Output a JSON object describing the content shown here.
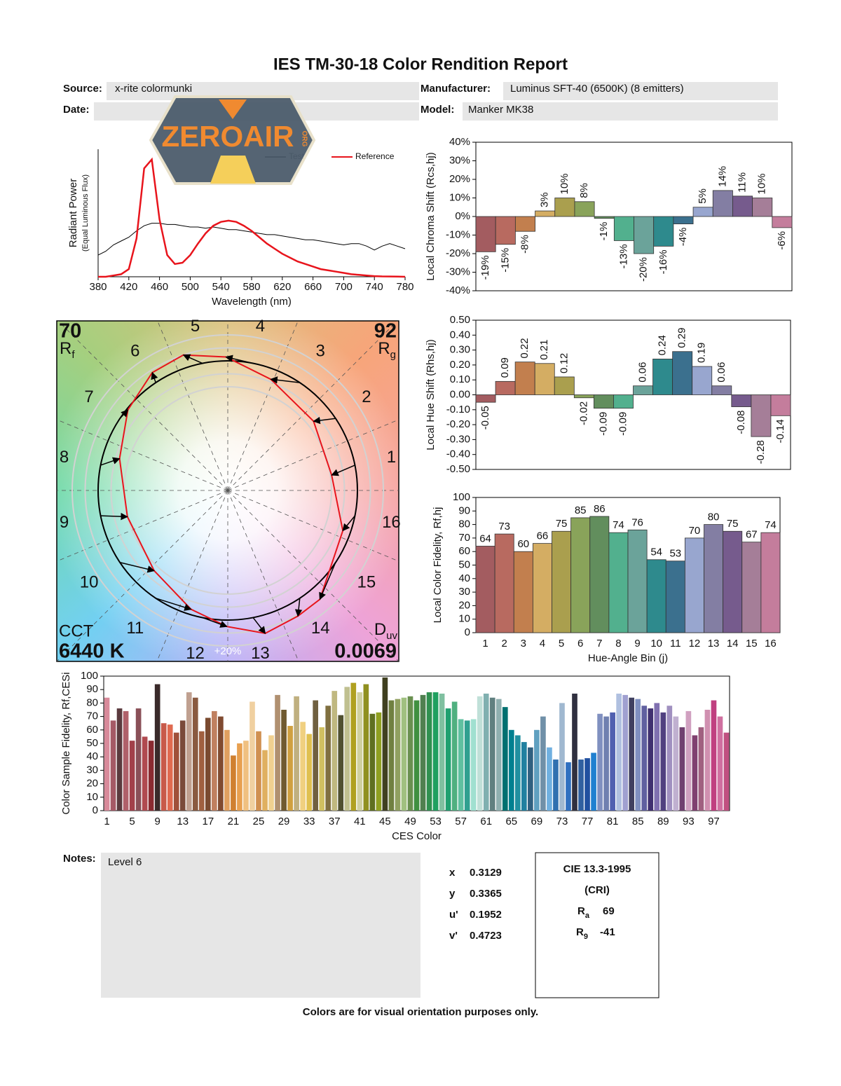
{
  "header": {
    "title": "IES TM-30-18 Color Rendition Report",
    "source_label": "Source:",
    "source": "x-rite colormunki",
    "manufacturer_label": "Manufacturer:",
    "manufacturer": "Luminus SFT-40 (6500K) (8 emitters)",
    "date_label": "Date:",
    "model_label": "Model:",
    "model": "Manker MK38"
  },
  "logo": {
    "text": "ZEROAIR",
    "suffix": "ORG"
  },
  "chart_data": [
    {
      "type": "line",
      "x": [
        380,
        390,
        400,
        410,
        420,
        430,
        440,
        450,
        460,
        470,
        480,
        490,
        500,
        510,
        520,
        530,
        540,
        550,
        560,
        570,
        580,
        590,
        600,
        610,
        620,
        630,
        640,
        650,
        660,
        670,
        680,
        690,
        700,
        710,
        720,
        730,
        740,
        750,
        760,
        770,
        780
      ],
      "series": [
        {
          "name": "Test",
          "color": "#000000",
          "values": [
            0.17,
            0.2,
            0.25,
            0.28,
            0.31,
            0.36,
            0.4,
            0.42,
            0.42,
            0.41,
            0.41,
            0.4,
            0.39,
            0.39,
            0.38,
            0.39,
            0.38,
            0.37,
            0.37,
            0.36,
            0.35,
            0.34,
            0.33,
            0.33,
            0.32,
            0.31,
            0.3,
            0.29,
            0.29,
            0.28,
            0.27,
            0.26,
            0.25,
            0.26,
            0.26,
            0.24,
            0.21,
            0.24,
            0.26,
            0.24,
            0.22
          ]
        },
        {
          "name": "Reference",
          "color": "#e8141c",
          "values": [
            0,
            0,
            0.01,
            0.02,
            0.06,
            0.3,
            0.85,
            0.92,
            0.45,
            0.17,
            0.1,
            0.11,
            0.17,
            0.26,
            0.34,
            0.4,
            0.43,
            0.44,
            0.43,
            0.4,
            0.36,
            0.31,
            0.26,
            0.22,
            0.18,
            0.15,
            0.12,
            0.1,
            0.08,
            0.06,
            0.05,
            0.04,
            0.03,
            0.02,
            0.015,
            0.01,
            0.005,
            0.003,
            0.002,
            0.001,
            0
          ]
        }
      ],
      "xlim": [
        380,
        780
      ],
      "ylim": [
        0,
        1
      ],
      "xticks": [
        380,
        420,
        460,
        500,
        540,
        580,
        620,
        660,
        700,
        740,
        780
      ],
      "xlabel": "Wavelength (nm)",
      "ylabel": "Radiant Power",
      "ylabel_note": "(Equal Luminous Flux)",
      "legend": "upper right"
    },
    {
      "type": "bar",
      "ylabel": "Local Chroma Shift (Rcs,hj)",
      "values": [
        -19,
        -15,
        -8,
        3,
        10,
        8,
        -1,
        -13,
        -20,
        -16,
        -4,
        5,
        14,
        11,
        10,
        -6
      ],
      "value_labels": [
        "-19%",
        "-15%",
        "-8%",
        "3%",
        "10%",
        "8%",
        "-1%",
        "-13%",
        "-20%",
        "-16%",
        "-4%",
        "5%",
        "14%",
        "11%",
        "10%",
        "-6%"
      ],
      "ylim": [
        -40,
        40
      ],
      "yticks": [
        {
          "value": 40,
          "label": "40%"
        },
        {
          "value": 30,
          "label": "30%"
        },
        {
          "value": 20,
          "label": "20%"
        },
        {
          "value": 10,
          "label": "10%"
        },
        {
          "value": 0,
          "label": "0%"
        },
        {
          "value": -10,
          "label": "-10%"
        },
        {
          "value": -20,
          "label": "-20%"
        },
        {
          "value": -30,
          "label": "-30%"
        },
        {
          "value": -40,
          "label": "-40%"
        }
      ],
      "colors": [
        "#a35c60",
        "#b86a60",
        "#c27f4e",
        "#d4ad63",
        "#aa9f4e",
        "#89a35a",
        "#628e5d",
        "#52b08e",
        "#6ba39a",
        "#2e8a8d",
        "#3b708e",
        "#98a6cf",
        "#837ea3",
        "#765b8d",
        "#a57e98",
        "#c47d9c"
      ]
    },
    {
      "type": "bar",
      "ylabel": "Local Hue Shift (Rhs,hj)",
      "values": [
        -0.05,
        0.09,
        0.22,
        0.21,
        0.12,
        -0.02,
        -0.09,
        -0.09,
        0.06,
        0.24,
        0.29,
        0.19,
        0.06,
        -0.08,
        -0.28,
        -0.14
      ],
      "ylim": [
        -0.5,
        0.5
      ],
      "yticks": [
        {
          "value": 0.5,
          "label": "0.50"
        },
        {
          "value": 0.4,
          "label": "0.40"
        },
        {
          "value": 0.3,
          "label": "0.30"
        },
        {
          "value": 0.2,
          "label": "0.20"
        },
        {
          "value": 0.1,
          "label": "0.10"
        },
        {
          "value": 0,
          "label": "0.00"
        },
        {
          "value": -0.1,
          "label": "-0.10"
        },
        {
          "value": -0.2,
          "label": "-0.20"
        },
        {
          "value": -0.3,
          "label": "-0.30"
        },
        {
          "value": -0.4,
          "label": "-0.40"
        },
        {
          "value": -0.5,
          "label": "-0.50"
        }
      ],
      "colors": [
        "#a35c60",
        "#b86a60",
        "#c27f4e",
        "#d4ad63",
        "#aa9f4e",
        "#89a35a",
        "#628e5d",
        "#52b08e",
        "#6ba39a",
        "#2e8a8d",
        "#3b708e",
        "#98a6cf",
        "#837ea3",
        "#765b8d",
        "#a57e98",
        "#c47d9c"
      ]
    },
    {
      "type": "bar",
      "ylabel": "Local Color Fidelity, Rf,hj",
      "xlabel": "Hue-Angle Bin (j)",
      "categories": [
        "1",
        "2",
        "3",
        "4",
        "5",
        "6",
        "7",
        "8",
        "9",
        "10",
        "11",
        "12",
        "13",
        "14",
        "15",
        "16"
      ],
      "values": [
        64,
        73,
        60,
        66,
        75,
        85,
        86,
        74,
        76,
        54,
        53,
        70,
        80,
        75,
        67,
        74
      ],
      "ylim": [
        0,
        100
      ],
      "yticks": [
        0,
        10,
        20,
        30,
        40,
        50,
        60,
        70,
        80,
        90,
        100
      ],
      "colors": [
        "#a35c60",
        "#b86a60",
        "#c27f4e",
        "#d4ad63",
        "#aa9f4e",
        "#89a35a",
        "#628e5d",
        "#52b08e",
        "#6ba39a",
        "#2e8a8d",
        "#3b708e",
        "#98a6cf",
        "#837ea3",
        "#765b8d",
        "#a57e98",
        "#c47d9c"
      ]
    },
    {
      "type": "vector",
      "rf": 70,
      "rf_symbol": "R",
      "rf_subscript": "f",
      "rg": 92,
      "rg_symbol": "R",
      "rg_subscript": "g",
      "cct_label": "CCT",
      "cct": {
        "value": 6440,
        "label": "6440 K"
      },
      "duv_symbol": "D",
      "duv_subscript": "uv",
      "duv": 0.0069,
      "bins": [
        "1",
        "2",
        "3",
        "4",
        "5",
        "6",
        "7",
        "8",
        "9",
        "10",
        "11",
        "12",
        "13",
        "14",
        "15",
        "16"
      ],
      "ring_label": "+20%",
      "test_color": "#e8141c",
      "reference_color": "#000000"
    },
    {
      "type": "bar",
      "ylabel": "Color Sample Fidelity, Rf,CESi",
      "xlabel": "CES Color",
      "categories": [
        "1",
        null,
        null,
        null,
        "5",
        null,
        null,
        null,
        "9",
        null,
        null,
        null,
        "13",
        null,
        null,
        null,
        "17",
        null,
        null,
        null,
        "21",
        null,
        null,
        null,
        "25",
        null,
        null,
        null,
        "29",
        null,
        null,
        null,
        "33",
        null,
        null,
        null,
        "37",
        null,
        null,
        null,
        "41",
        null,
        null,
        null,
        "45",
        null,
        null,
        null,
        "49",
        null,
        null,
        null,
        "53",
        null,
        null,
        null,
        "57",
        null,
        null,
        null,
        "61",
        null,
        null,
        null,
        "65",
        null,
        null,
        null,
        "69",
        null,
        null,
        null,
        "73",
        null,
        null,
        null,
        "77",
        null,
        null,
        null,
        "81",
        null,
        null,
        null,
        "85",
        null,
        null,
        null,
        "89",
        null,
        null,
        null,
        "93",
        null,
        null,
        null,
        "97",
        null,
        null
      ],
      "values": [
        84,
        67,
        76,
        74,
        52,
        76,
        55,
        52,
        94,
        65,
        64,
        58,
        67,
        88,
        84,
        59,
        69,
        74,
        70,
        60,
        41,
        50,
        52,
        81,
        59,
        45,
        56,
        86,
        75,
        63,
        85,
        66,
        57,
        82,
        62,
        78,
        89,
        71,
        92,
        95,
        88,
        94,
        72,
        73,
        99,
        82,
        83,
        84,
        85,
        82,
        86,
        88,
        88,
        87,
        76,
        81,
        68,
        67,
        68,
        85,
        87,
        84,
        83,
        77,
        60,
        56,
        51,
        47,
        60,
        70,
        47,
        38,
        80,
        36,
        87,
        38,
        39,
        43,
        72,
        70,
        73,
        87,
        86,
        84,
        83,
        78,
        76,
        80,
        73,
        78,
        70,
        62,
        74,
        56,
        62,
        75,
        82,
        70,
        58
      ],
      "ylim": [
        0,
        100
      ],
      "yticks": [
        0,
        10,
        20,
        30,
        40,
        50,
        60,
        70,
        80,
        90,
        100
      ],
      "colors": [
        "#d88a9a",
        "#a55a66",
        "#5b3a3e",
        "#b0606a",
        "#a2404a",
        "#8a5058",
        "#b04a50",
        "#8a2a30",
        "#3a2a2a",
        "#c85a4a",
        "#e06a50",
        "#a0503a",
        "#7a4a3a",
        "#c0a090",
        "#8a5a40",
        "#a06040",
        "#7a4a30",
        "#c08060",
        "#804a30",
        "#e0a060",
        "#d08030",
        "#e8a050",
        "#f0c080",
        "#f0d0a0",
        "#d09050",
        "#e0b060",
        "#f0d090",
        "#b09070",
        "#705a30",
        "#d0a040",
        "#c0b080",
        "#f0d080",
        "#e0c050",
        "#706040",
        "#d0c060",
        "#807040",
        "#c0b880",
        "#505030",
        "#c0c090",
        "#b0a020",
        "#d0d0a0",
        "#909020",
        "#607020",
        "#90a020",
        "#404020",
        "#708040",
        "#90a060",
        "#a0c080",
        "#6a9050",
        "#409040",
        "#508050",
        "#309050",
        "#20a060",
        "#80c0a0",
        "#20a070",
        "#50b080",
        "#60c0a0",
        "#30a090",
        "#a0e0d0",
        "#c0e0d8",
        "#80b0b0",
        "#608080",
        "#90b0b0",
        "#007070",
        "#008090",
        "#2090a0",
        "#2080a0",
        "#306080",
        "#60a0c0",
        "#7090a8",
        "#70b0e0",
        "#3070b0",
        "#a0b8d0",
        "#3070c0",
        "#303040",
        "#3060a0",
        "#2050a0",
        "#2080d0",
        "#8090c0",
        "#7080b0",
        "#5060b0",
        "#b0c0e0",
        "#a0a0d0",
        "#404060",
        "#8090c0",
        "#6060a0",
        "#403070",
        "#8070b0",
        "#504080",
        "#a090c0",
        "#c0b0d0",
        "#704070",
        "#d0a0c0",
        "#804070",
        "#a06080",
        "#d090b0",
        "#c04080",
        "#d070a0",
        "#c05080"
      ]
    }
  ],
  "notes": {
    "label": "Notes:",
    "text": "Level 6"
  },
  "chromaticity": [
    {
      "label": "x",
      "value": 0.3129
    },
    {
      "label": "y",
      "value": 0.3365
    },
    {
      "label": "u'",
      "value": 0.1952
    },
    {
      "label": "v'",
      "value": 0.4723
    }
  ],
  "cri": {
    "title": "CIE 13.3-1995",
    "subtitle": "(CRI)",
    "ra_symbol": "R",
    "ra_subscript": "a",
    "ra": 69,
    "r9_symbol": "R",
    "r9_subscript": "9",
    "r9": -41
  },
  "footer": "Colors are for visual orientation purposes only."
}
